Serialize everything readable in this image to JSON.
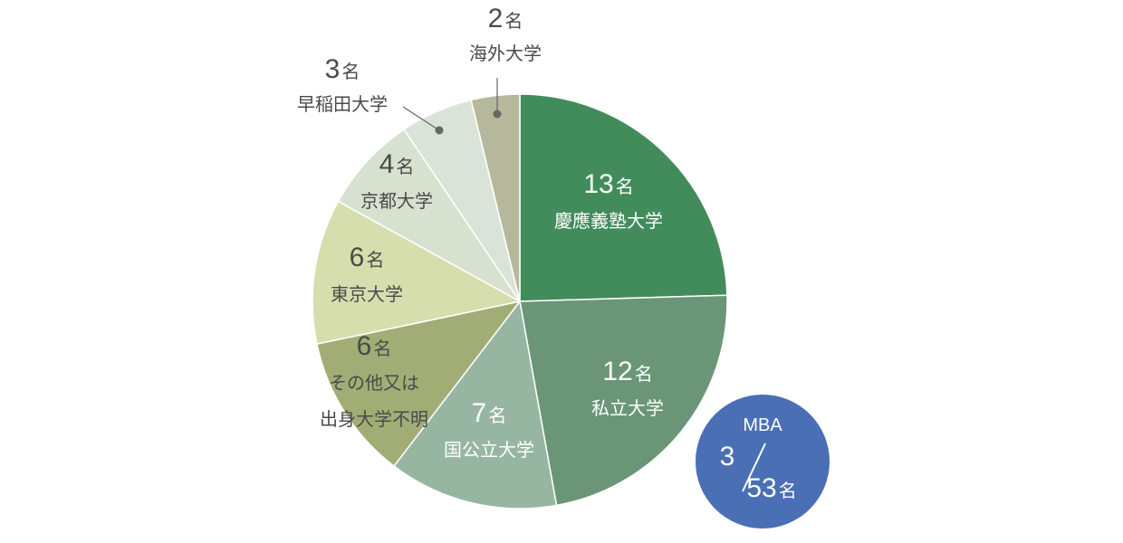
{
  "chart_data": {
    "type": "pie",
    "total": 53,
    "unit": "名",
    "slices": [
      {
        "label": "慶應義塾大学",
        "value": 13,
        "color": "#428c5c"
      },
      {
        "label": "私立大学",
        "value": 12,
        "color": "#6a9677"
      },
      {
        "label": "国公立大学",
        "value": 7,
        "color": "#97b6a2"
      },
      {
        "label": "その他又は出身大学不明",
        "label_lines": [
          "その他又は",
          "出身大学不明"
        ],
        "value": 6,
        "color": "#a2ad76"
      },
      {
        "label": "東京大学",
        "value": 6,
        "color": "#d6dead"
      },
      {
        "label": "京都大学",
        "value": 4,
        "color": "#d7e1cf"
      },
      {
        "label": "早稲田大学",
        "value": 3,
        "color": "#dae3d8"
      },
      {
        "label": "海外大学",
        "value": 2,
        "color": "#b5b89b"
      }
    ],
    "badge": {
      "title": "MBA",
      "numerator": 3,
      "denominator": 53,
      "unit": "名",
      "color": "#4a6fb5"
    }
  }
}
